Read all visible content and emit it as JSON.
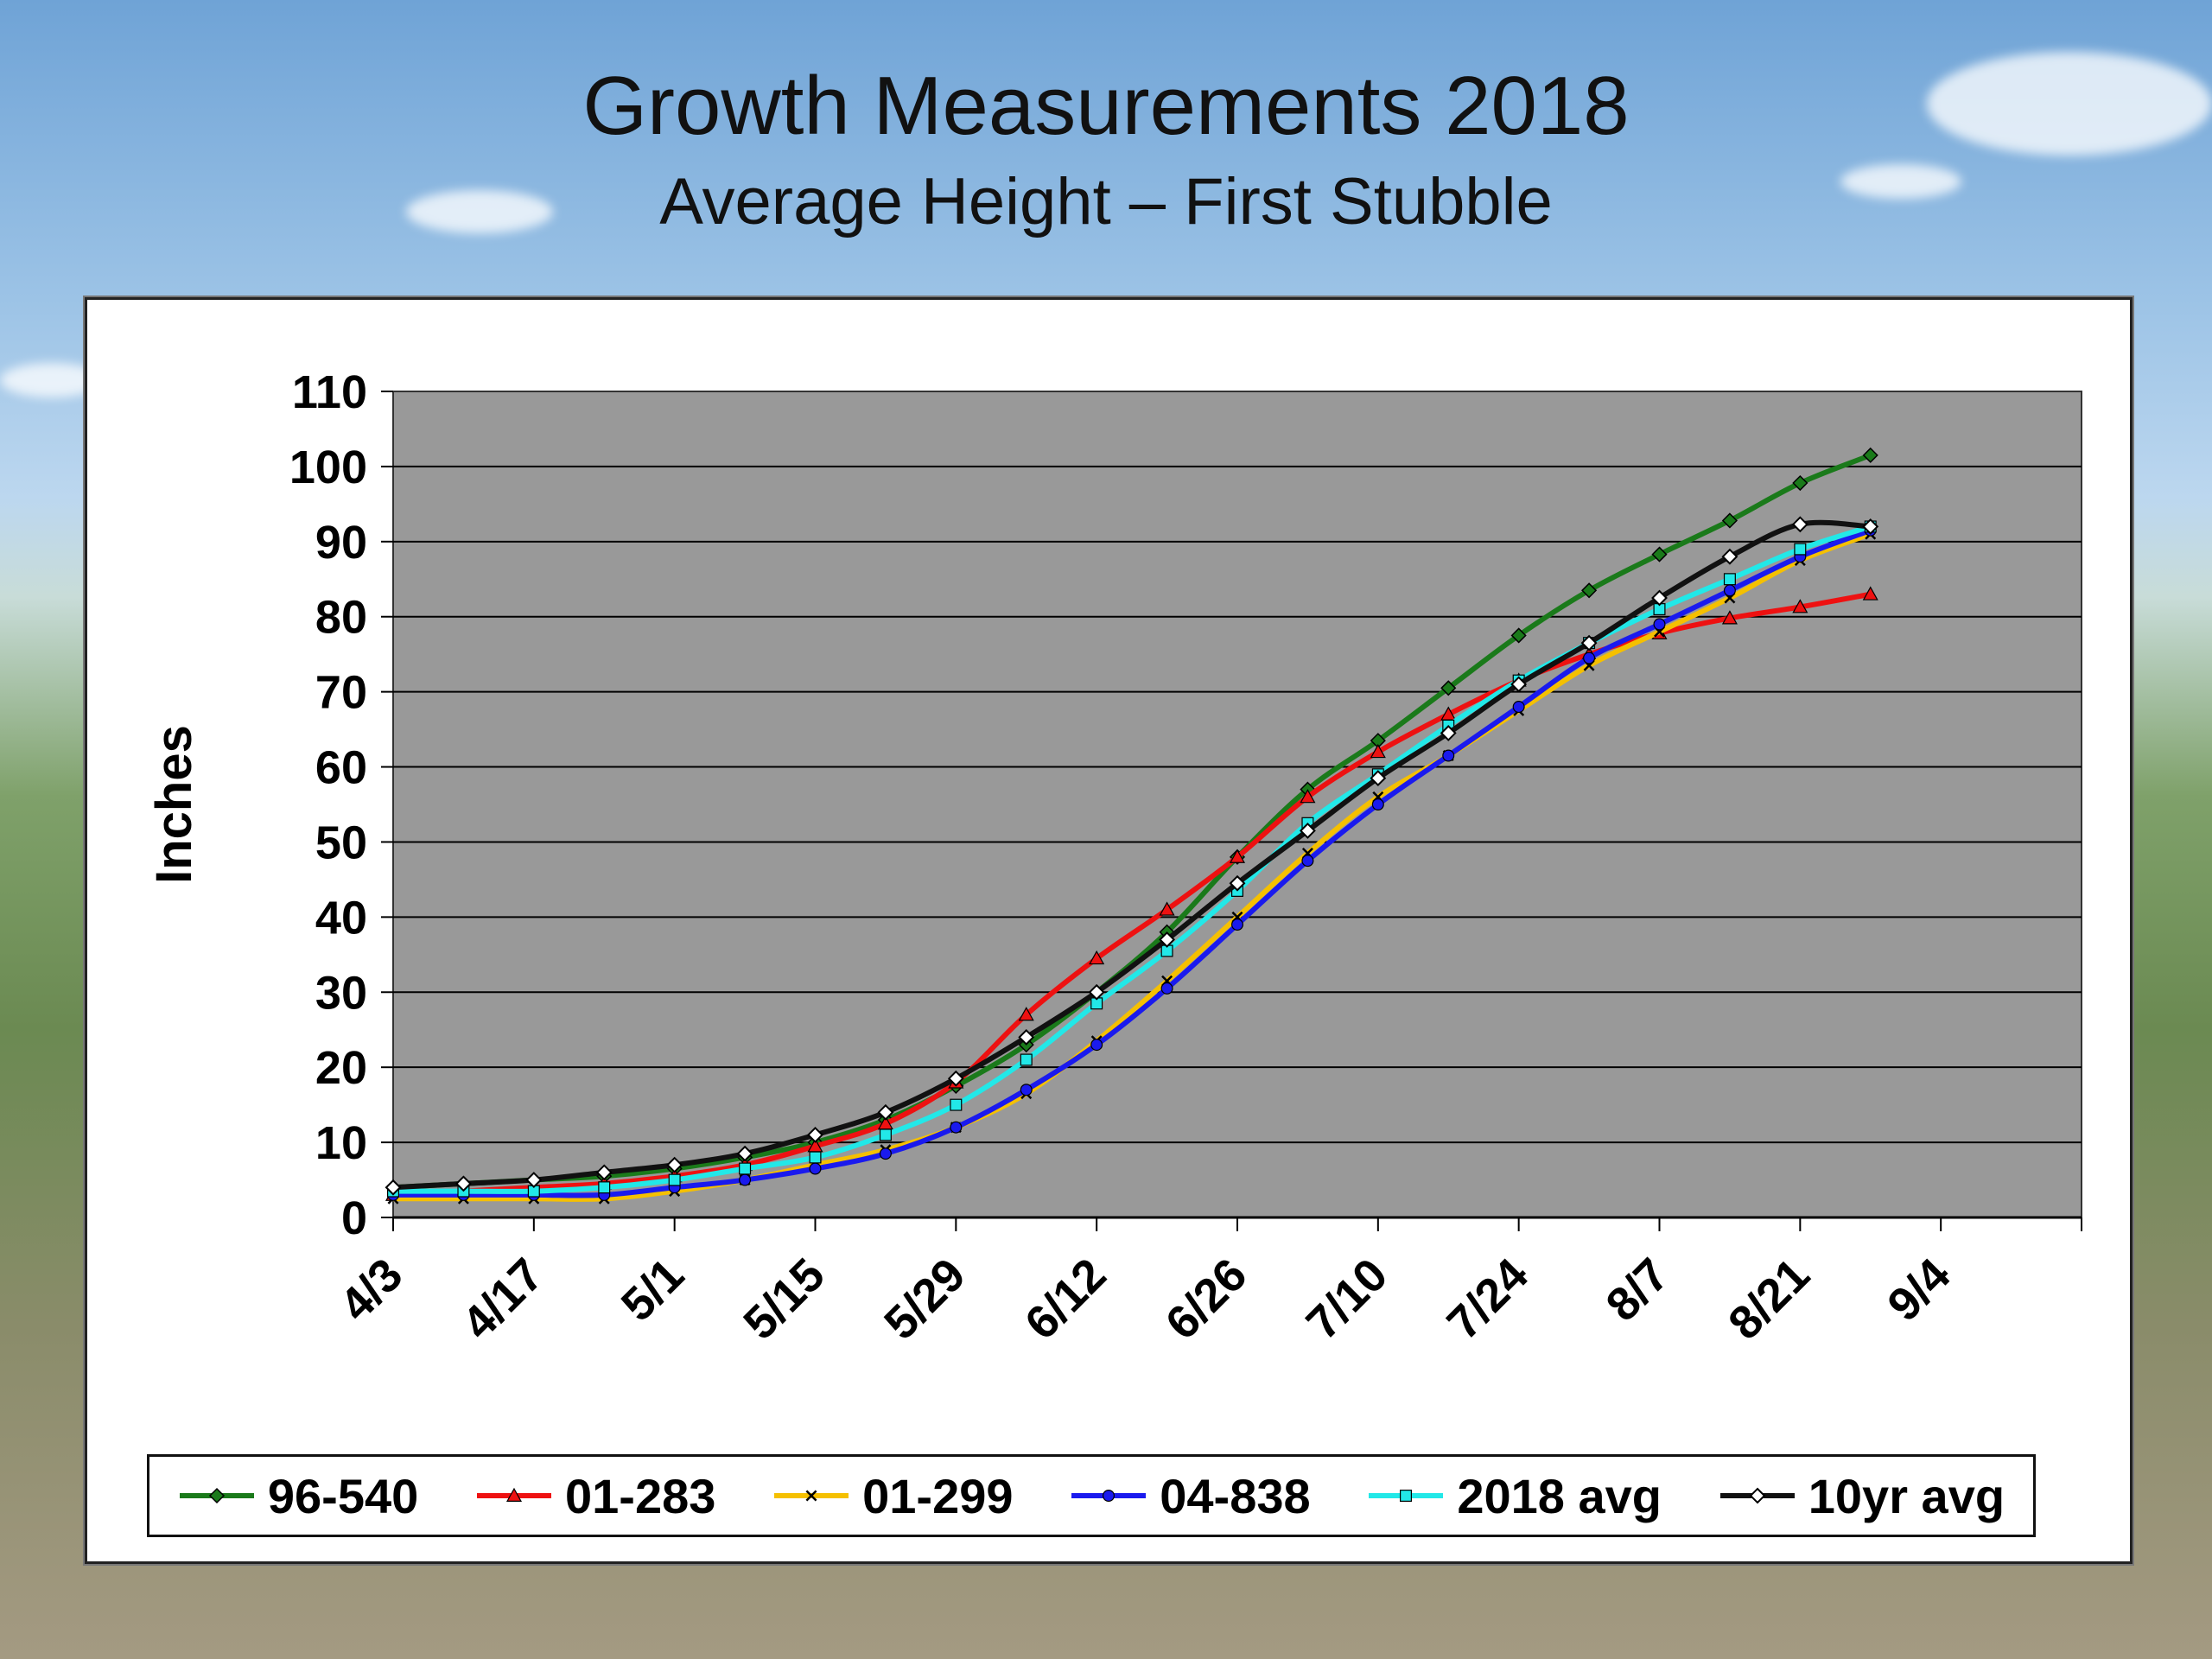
{
  "title": "Growth Measurements 2018",
  "subtitle": "Average Height – First Stubble",
  "chart_data": {
    "type": "line",
    "ylabel": "Inches",
    "xlabel": "",
    "ylim": [
      0,
      110
    ],
    "yticks": [
      0,
      10,
      20,
      30,
      40,
      50,
      60,
      70,
      80,
      90,
      100,
      110
    ],
    "xlim": [
      "4/3",
      "9/10"
    ],
    "xticks": [
      "4/3",
      "4/17",
      "5/1",
      "5/15",
      "5/29",
      "6/12",
      "6/26",
      "7/10",
      "7/24",
      "8/7",
      "8/21",
      "9/4"
    ],
    "plot_background": "#999999",
    "grid": "horizontal",
    "legend_position": "bottom",
    "x": [
      "4/3",
      "4/10",
      "4/17",
      "4/24",
      "5/1",
      "5/8",
      "5/15",
      "5/22",
      "5/29",
      "6/5",
      "6/12",
      "6/19",
      "6/26",
      "7/3",
      "7/10",
      "7/17",
      "7/24",
      "7/31",
      "8/7",
      "8/14",
      "8/21",
      "8/28"
    ],
    "series": [
      {
        "name": "96-540",
        "color": "#1a7a1a",
        "marker": "diamond",
        "values": [
          4,
          4.5,
          5,
          5.5,
          6.5,
          8,
          10,
          13,
          17.5,
          23,
          30,
          38,
          48,
          57,
          63.5,
          70.5,
          77.5,
          83.5,
          88.3,
          92.8,
          97.8,
          101.5
        ]
      },
      {
        "name": "01-283",
        "color": "#ee1111",
        "marker": "triangle",
        "values": [
          3,
          3.5,
          4,
          4.5,
          5.5,
          7,
          9.5,
          12.5,
          18,
          27,
          34.5,
          41,
          48,
          56,
          62,
          67,
          71.5,
          75,
          77.8,
          79.8,
          81.3,
          83
        ]
      },
      {
        "name": "01-299",
        "color": "#f5c000",
        "marker": "x",
        "values": [
          2.5,
          2.5,
          2.5,
          2.5,
          3.5,
          5,
          7,
          9,
          12,
          16.5,
          23.5,
          31.5,
          40,
          48.5,
          56,
          61.5,
          67.5,
          73.5,
          78,
          82.5,
          87.5,
          91
        ]
      },
      {
        "name": "04-838",
        "color": "#1a1aee",
        "marker": "circle",
        "values": [
          3,
          3,
          3,
          3,
          4,
          5,
          6.5,
          8.5,
          12,
          17,
          23,
          30.5,
          39,
          47.5,
          55,
          61.5,
          68,
          74.5,
          79,
          83.5,
          88,
          91.5
        ]
      },
      {
        "name": "2018 avg",
        "color": "#22e8e8",
        "marker": "square",
        "values": [
          3.5,
          3.5,
          3.5,
          4,
          5,
          6.5,
          8,
          11,
          15,
          21,
          28.5,
          35.5,
          43.5,
          52.5,
          59,
          65.5,
          71.5,
          76.5,
          81,
          85,
          89,
          92
        ]
      },
      {
        "name": "10yr avg",
        "color": "#111111",
        "marker": "diamond-open",
        "values": [
          4,
          4.5,
          5,
          6,
          7,
          8.5,
          11,
          14,
          18.5,
          24,
          30,
          37,
          44.5,
          51.5,
          58.5,
          64.5,
          71,
          76.5,
          82.5,
          88,
          92.3,
          92
        ]
      }
    ]
  }
}
